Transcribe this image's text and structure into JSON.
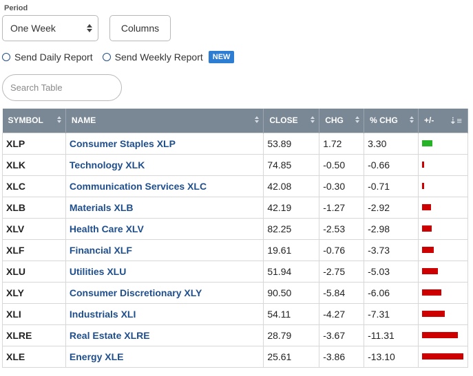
{
  "period": {
    "label": "Period",
    "selected": "One Week"
  },
  "columns_button": "Columns",
  "reports": {
    "daily": "Send Daily Report",
    "weekly": "Send Weekly Report",
    "new_badge": "NEW"
  },
  "search": {
    "placeholder": "Search Table"
  },
  "table": {
    "headers": [
      "SYMBOL",
      "NAME",
      "CLOSE",
      "CHG",
      "% CHG",
      "+/-"
    ],
    "rows": [
      {
        "symbol": "XLP",
        "name": "Consumer Staples XLP",
        "close": "53.89",
        "chg": "1.72",
        "pct": "3.30",
        "pct_value": 3.3
      },
      {
        "symbol": "XLK",
        "name": "Technology XLK",
        "close": "74.85",
        "chg": "-0.50",
        "pct": "-0.66",
        "pct_value": -0.66
      },
      {
        "symbol": "XLC",
        "name": "Communication Services XLC",
        "close": "42.08",
        "chg": "-0.30",
        "pct": "-0.71",
        "pct_value": -0.71
      },
      {
        "symbol": "XLB",
        "name": "Materials XLB",
        "close": "42.19",
        "chg": "-1.27",
        "pct": "-2.92",
        "pct_value": -2.92
      },
      {
        "symbol": "XLV",
        "name": "Health Care XLV",
        "close": "82.25",
        "chg": "-2.53",
        "pct": "-2.98",
        "pct_value": -2.98
      },
      {
        "symbol": "XLF",
        "name": "Financial XLF",
        "close": "19.61",
        "chg": "-0.76",
        "pct": "-3.73",
        "pct_value": -3.73
      },
      {
        "symbol": "XLU",
        "name": "Utilities XLU",
        "close": "51.94",
        "chg": "-2.75",
        "pct": "-5.03",
        "pct_value": -5.03
      },
      {
        "symbol": "XLY",
        "name": "Consumer Discretionary XLY",
        "close": "90.50",
        "chg": "-5.84",
        "pct": "-6.06",
        "pct_value": -6.06
      },
      {
        "symbol": "XLI",
        "name": "Industrials XLI",
        "close": "54.11",
        "chg": "-4.27",
        "pct": "-7.31",
        "pct_value": -7.31
      },
      {
        "symbol": "XLRE",
        "name": "Real Estate XLRE",
        "close": "28.79",
        "chg": "-3.67",
        "pct": "-11.31",
        "pct_value": -11.31
      },
      {
        "symbol": "XLE",
        "name": "Energy XLE",
        "close": "25.61",
        "chg": "-3.86",
        "pct": "-13.10",
        "pct_value": -13.1
      }
    ]
  },
  "colors": {
    "positive": "#27b327",
    "negative": "#cc0000",
    "header_bg": "#7a8896",
    "link": "#1f4e8c",
    "badge": "#2d7dd2"
  },
  "icons": {
    "sort": "sort-arrows-icon",
    "sort_desc": "sort-descending-icon",
    "select": "select-arrows-icon"
  }
}
